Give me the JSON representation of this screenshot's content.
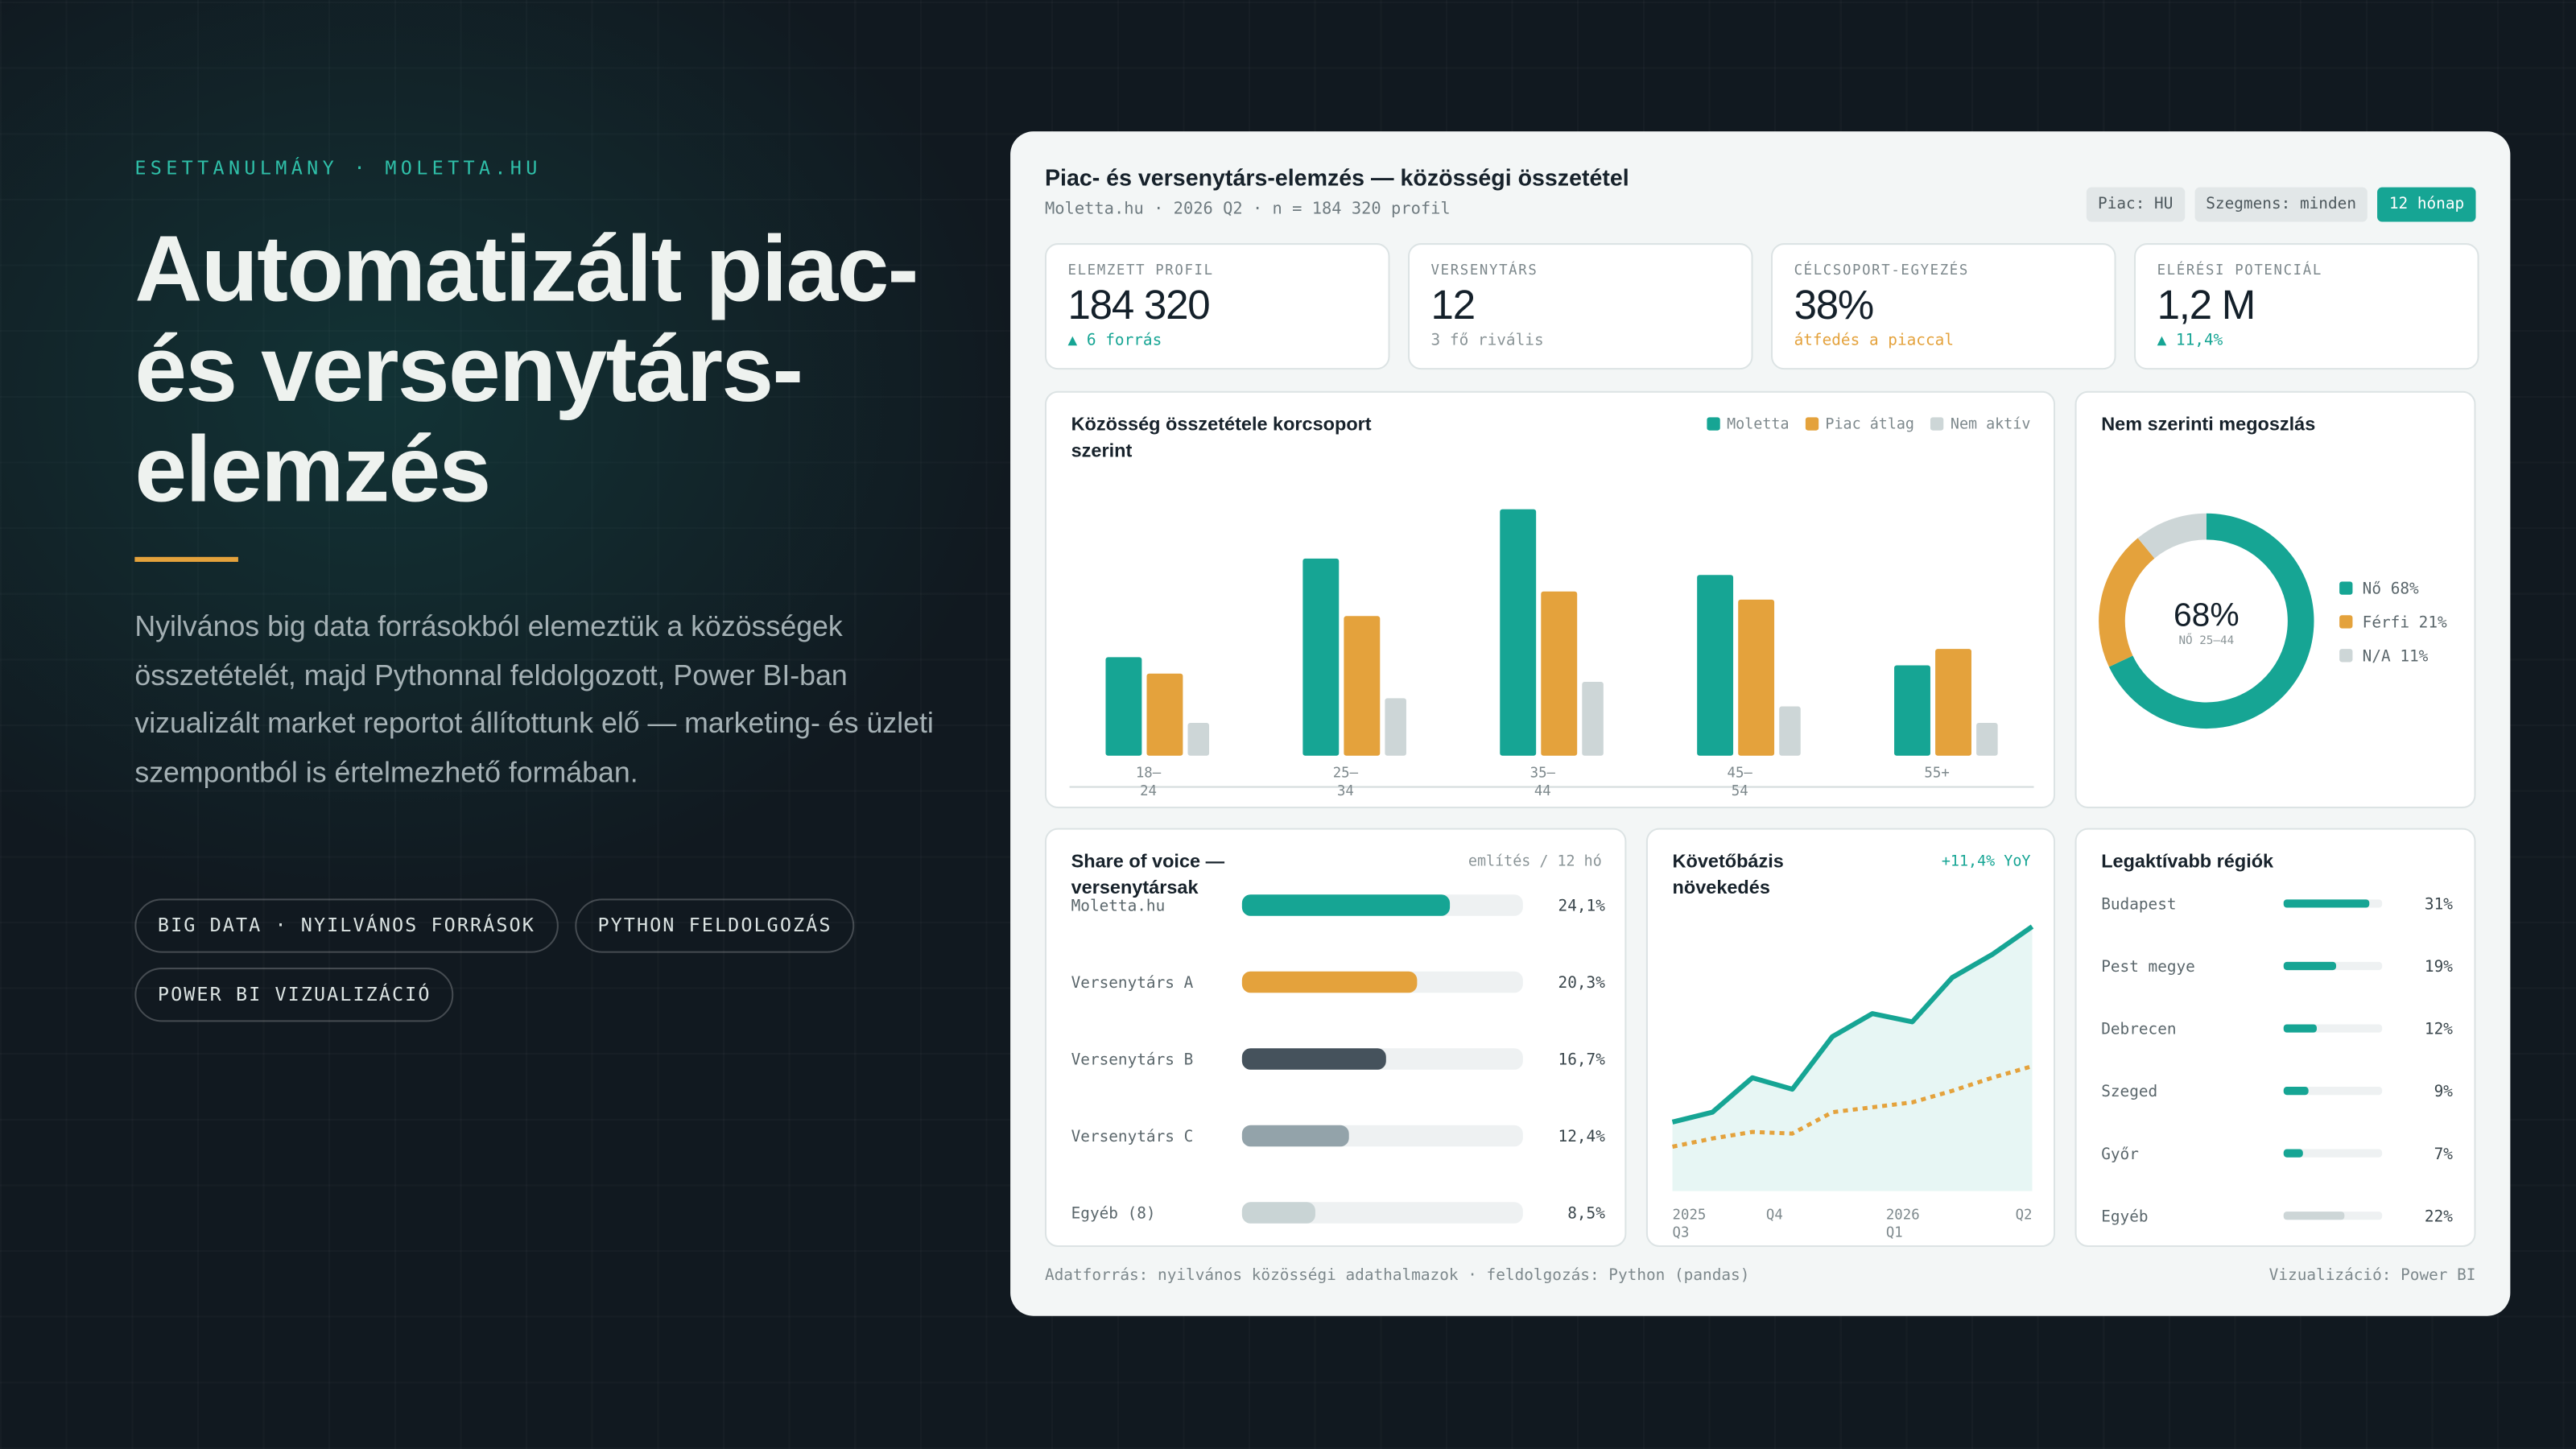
{
  "hero": {
    "eyebrow": "ESETTANULMÁNY · MOLETTA.HU",
    "title": "Automatizált piac- és versenytárs-elemzés",
    "text": "Nyilvános big data forrásokból elemeztük a közösségek összetételét, majd Pythonnal feldolgozott, Power BI-ban vizualizált market reportot állítottunk elő — marketing- és üzleti szempontból is értelmezhető formában.",
    "tags": [
      "BIG DATA · NYILVÁNOS FORRÁSOK",
      "PYTHON FELDOLGOZÁS",
      "POWER BI VIZUALIZÁCIÓ"
    ]
  },
  "dashboard": {
    "title": "Piac- és versenytárs-elemzés — közösségi összetétel",
    "subtitle": "Moletta.hu · 2026 Q2 · n = 184 320 profil",
    "filters": [
      "Piac: HU",
      "Szegmens: minden",
      "12 hónap"
    ],
    "kpis": [
      {
        "label": "ELEMZETT PROFIL",
        "value": "184 320",
        "note": "▲ 6 forrás"
      },
      {
        "label": "VERSENYTÁRS",
        "value": "12",
        "note": "3 fő rivális"
      },
      {
        "label": "CÉLCSOPORT-EGYEZÉS",
        "value": "38%",
        "note": "átfedés a piaccal"
      },
      {
        "label": "ELÉRÉSI POTENCIÁL",
        "value": "1,2 M",
        "note": "▲ 11,4%"
      }
    ],
    "age_chart": {
      "type": "bar",
      "title": "Közösség összetétele korcsoport szerint",
      "categories": [
        "18–24",
        "25–34",
        "35–44",
        "45–54",
        "55+"
      ],
      "series": [
        {
          "name": "Moletta",
          "color": "#16a594",
          "values": [
            12,
            24,
            30,
            22,
            11
          ]
        },
        {
          "name": "Piac átlag",
          "color": "#e4a23c",
          "values": [
            10,
            17,
            20,
            19,
            13
          ]
        },
        {
          "name": "Nem aktív",
          "color": "#cdd6d7",
          "values": [
            4,
            7,
            9,
            6,
            4
          ]
        }
      ]
    },
    "gender_chart": {
      "type": "pie",
      "title": "Nem szerinti megoszlás",
      "categories": [
        "Nő",
        "Férfi",
        "N/A"
      ],
      "values": [
        68,
        21,
        11
      ],
      "value_labels": [
        "68%",
        "21%",
        "11%"
      ],
      "colors": [
        "#16a594",
        "#e4a23c",
        "#cdd6d7"
      ],
      "center_label": "NŐ 25–44"
    },
    "sov_chart": {
      "type": "hbar",
      "title": "Share of voice — versenytársak",
      "note": "említés / 12 hó",
      "categories": [
        "Moletta.hu",
        "Versenytárs A",
        "Versenytárs B",
        "Versenytárs C",
        "Egyéb (8)"
      ],
      "values": [
        24.1,
        20.3,
        16.7,
        12.4,
        8.5
      ],
      "value_labels": [
        "24,1%",
        "20,3%",
        "16,7%",
        "12,4%",
        "8,5%"
      ],
      "colors": [
        "#16a594",
        "#e4a23c",
        "#45525c",
        "#93a3aa",
        "#c9d4d5"
      ]
    },
    "growth_chart": {
      "type": "line",
      "title": "Követőbázis növekedés",
      "note": "+11,4% YoY",
      "categories": [
        "2025 Q3",
        null,
        null,
        "Q4",
        null,
        null,
        "2026 Q1",
        null,
        null,
        "Q2"
      ],
      "series": [
        {
          "color": "#16a594",
          "area": true,
          "values": [
            42,
            48,
            69,
            62,
            94,
            108,
            103,
            130,
            144,
            161
          ]
        },
        {
          "color": "#e4a23c",
          "dashed": true,
          "values": [
            27,
            32,
            36,
            35,
            48,
            51,
            54,
            61,
            69,
            76
          ]
        }
      ]
    },
    "regions_chart": {
      "type": "hbar",
      "title": "Legaktívabb régiók",
      "categories": [
        "Budapest",
        "Pest megye",
        "Debrecen",
        "Szeged",
        "Győr",
        "Egyéb"
      ],
      "values": [
        31,
        19,
        12,
        9,
        7,
        22
      ],
      "value_labels": [
        "31%",
        "19%",
        "12%",
        "9%",
        "7%",
        "22%"
      ],
      "colors": [
        "#16a594",
        "#16a594",
        "#16a594",
        "#16a594",
        "#16a594",
        "#cdd6d7"
      ]
    },
    "footer": {
      "source": "Adatforrás: nyilvános közösségi adathalmazok · feldolgozás: Python (pandas)",
      "credit": "Vizualizáció: Power BI"
    }
  }
}
